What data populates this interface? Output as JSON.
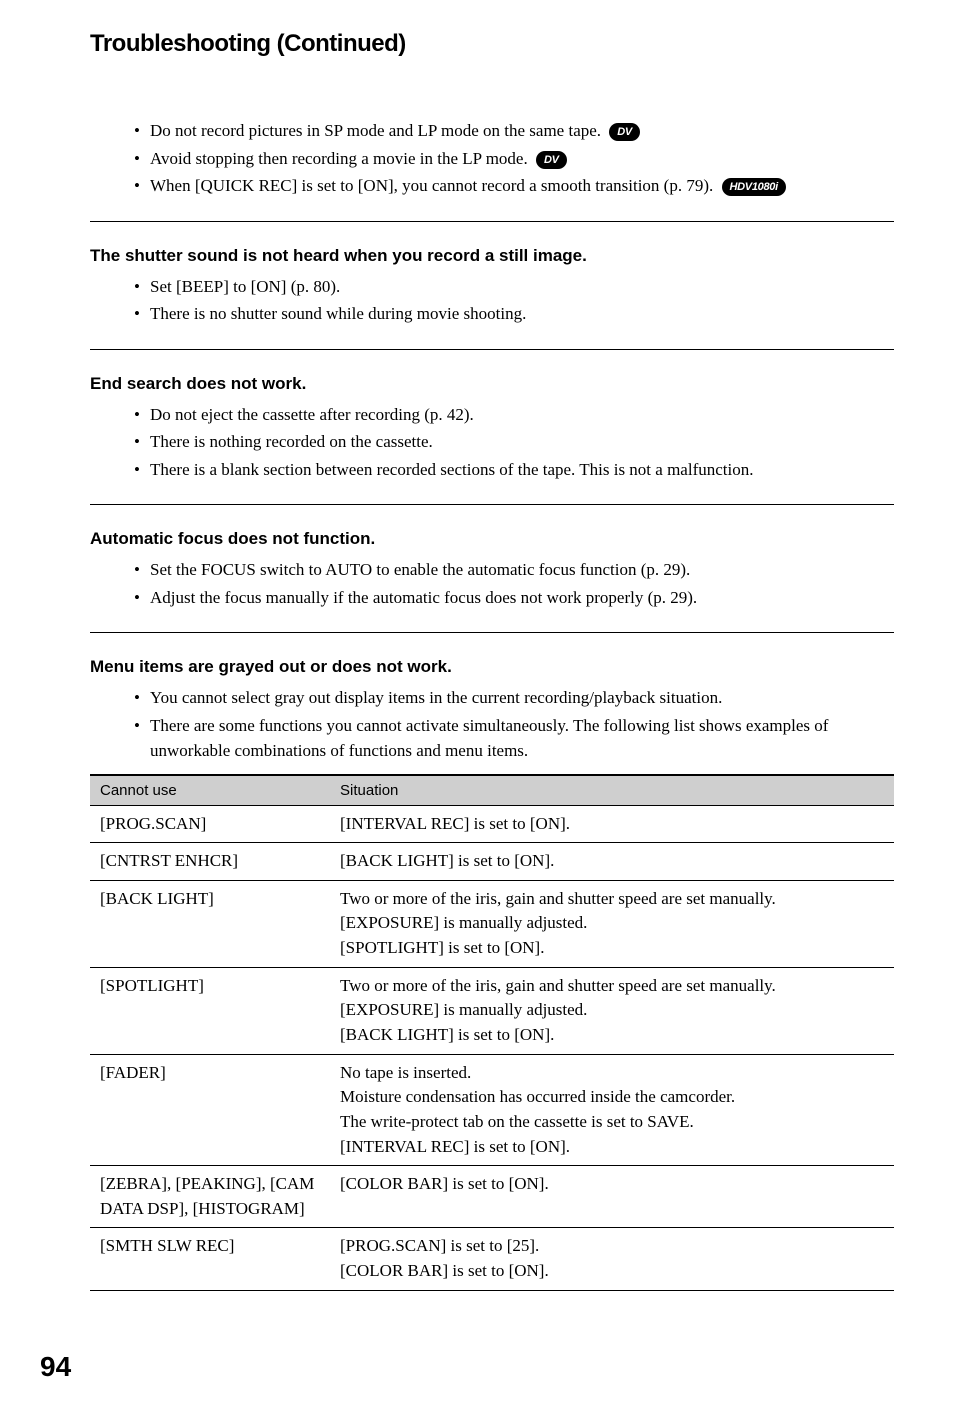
{
  "title": "Troubleshooting (Continued)",
  "topBullets": [
    {
      "text": "Do not record pictures in SP mode and LP mode on the same tape.",
      "icon": "DV"
    },
    {
      "text": "Avoid stopping then recording a movie in the LP mode.",
      "icon": "DV"
    },
    {
      "text": "When [QUICK REC] is set to [ON], you cannot record a smooth transition (p. 79).",
      "icon": "HDV1080i"
    }
  ],
  "sections": [
    {
      "heading": "The shutter sound is not heard when you record a still image.",
      "bullets": [
        "Set [BEEP] to [ON] (p. 80).",
        "There is no shutter sound while during movie shooting."
      ]
    },
    {
      "heading": "End search does not work.",
      "bullets": [
        "Do not eject the cassette after recording (p. 42).",
        "There is nothing recorded on the cassette.",
        "There is a blank section between recorded sections of the tape. This is not a malfunction."
      ]
    },
    {
      "heading": "Automatic focus does not function.",
      "bullets": [
        "Set the FOCUS switch to AUTO to enable the automatic focus function (p. 29).",
        "Adjust the focus manually if the automatic focus does not work properly (p. 29)."
      ]
    },
    {
      "heading": "Menu items are grayed out or does not work.",
      "bullets": [
        "You cannot select gray out display items in the current recording/playback situation.",
        "There are some functions you cannot activate simultaneously. The following list shows examples of unworkable combinations of functions and menu items."
      ]
    }
  ],
  "table": {
    "headers": [
      "Cannot use",
      "Situation"
    ],
    "rows": [
      {
        "c1": "[PROG.SCAN]",
        "c2": "[INTERVAL REC] is set to [ON]."
      },
      {
        "c1": "[CNTRST ENHCR]",
        "c2": "[BACK LIGHT] is set to [ON]."
      },
      {
        "c1": "[BACK LIGHT]",
        "c2": "Two or more of the iris, gain and shutter speed are set manually.\n[EXPOSURE] is manually adjusted.\n[SPOTLIGHT] is set to [ON]."
      },
      {
        "c1": "[SPOTLIGHT]",
        "c2": "Two or more of the iris, gain and shutter speed are set manually.\n[EXPOSURE] is manually adjusted.\n[BACK LIGHT] is set to [ON]."
      },
      {
        "c1": "[FADER]",
        "c2": "No tape is inserted.\nMoisture condensation has occurred inside the camcorder.\nThe write-protect tab on the cassette is set to SAVE.\n[INTERVAL REC] is set to [ON]."
      },
      {
        "c1": "[ZEBRA], [PEAKING], [CAM DATA DSP], [HISTOGRAM]",
        "c2": "[COLOR BAR] is set to [ON]."
      },
      {
        "c1": "[SMTH SLW REC]",
        "c2": "[PROG.SCAN] is set to [25].\n[COLOR BAR] is set to [ON]."
      }
    ]
  },
  "pageNumber": "94"
}
